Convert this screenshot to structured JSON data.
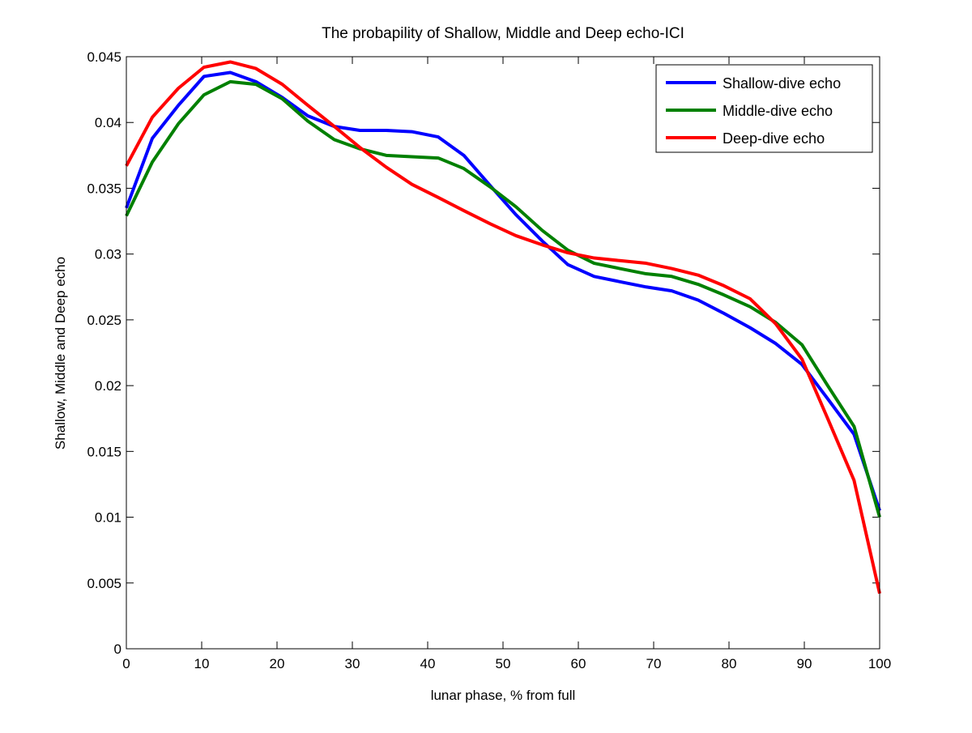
{
  "chart_data": {
    "type": "line",
    "title": "The probapility of Shallow, Middle and Deep echo-ICI",
    "xlabel": "lunar phase, % from full",
    "ylabel": "Shallow, Middle and Deep echo",
    "xlim": [
      0,
      100
    ],
    "ylim": [
      0,
      0.045
    ],
    "xticks": [
      0,
      10,
      20,
      30,
      40,
      50,
      60,
      70,
      80,
      90,
      100
    ],
    "xtick_labels": [
      "0",
      "10",
      "20",
      "30",
      "40",
      "50",
      "60",
      "70",
      "80",
      "90",
      "100"
    ],
    "yticks": [
      0,
      0.005,
      0.01,
      0.015,
      0.02,
      0.025,
      0.03,
      0.035,
      0.04,
      0.045
    ],
    "ytick_labels": [
      "0",
      "0.005",
      "0.01",
      "0.015",
      "0.02",
      "0.025",
      "0.03",
      "0.035",
      "0.04",
      "0.045"
    ],
    "grid": false,
    "legend_position": "top-right",
    "x": [
      0,
      3.45,
      6.9,
      10.3,
      13.8,
      17.2,
      20.7,
      24.1,
      27.6,
      31,
      34.5,
      37.9,
      41.4,
      44.8,
      48.3,
      51.7,
      55.2,
      58.6,
      62.1,
      65.5,
      69,
      72.4,
      75.9,
      79.3,
      82.8,
      86.2,
      89.7,
      93.1,
      96.6,
      100
    ],
    "series": [
      {
        "name": "Shallow-dive echo",
        "color": "#0000ff",
        "values": [
          0.0335,
          0.0388,
          0.0413,
          0.0435,
          0.0438,
          0.0431,
          0.0419,
          0.0405,
          0.0397,
          0.0394,
          0.0394,
          0.0393,
          0.0389,
          0.0375,
          0.0352,
          0.033,
          0.031,
          0.0292,
          0.0283,
          0.0279,
          0.0275,
          0.0272,
          0.0265,
          0.0255,
          0.0244,
          0.0232,
          0.0216,
          0.019,
          0.0163,
          0.0105
        ]
      },
      {
        "name": "Middle-dive echo",
        "color": "#008000",
        "values": [
          0.0329,
          0.037,
          0.0399,
          0.0421,
          0.0431,
          0.0429,
          0.0418,
          0.0401,
          0.0387,
          0.038,
          0.0375,
          0.0374,
          0.0373,
          0.0365,
          0.0351,
          0.0336,
          0.0318,
          0.0303,
          0.0293,
          0.0289,
          0.0285,
          0.0283,
          0.0277,
          0.0269,
          0.026,
          0.0248,
          0.0231,
          0.02,
          0.0169,
          0.01
        ]
      },
      {
        "name": "Deep-dive echo",
        "color": "#ff0000",
        "values": [
          0.0367,
          0.0404,
          0.0426,
          0.0442,
          0.0446,
          0.0441,
          0.0429,
          0.0413,
          0.0397,
          0.0381,
          0.0366,
          0.0353,
          0.0343,
          0.0333,
          0.0323,
          0.0314,
          0.0307,
          0.0301,
          0.0297,
          0.0295,
          0.0293,
          0.0289,
          0.0284,
          0.0276,
          0.0266,
          0.0247,
          0.022,
          0.0175,
          0.0128,
          0.0042
        ]
      }
    ]
  }
}
